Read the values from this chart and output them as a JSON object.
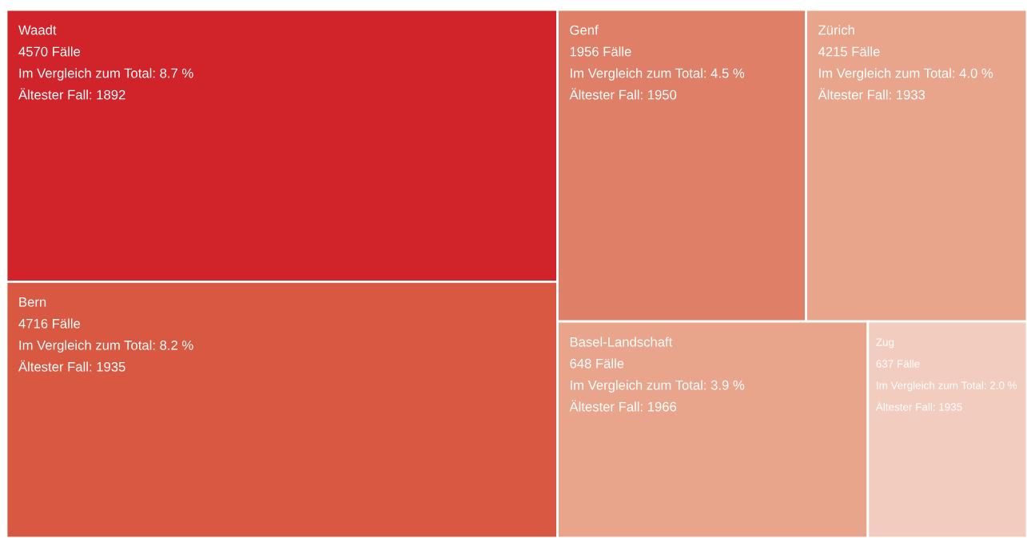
{
  "chart_data": {
    "type": "other",
    "categories": [
      "Waadt",
      "Bern",
      "Genf",
      "Zürich",
      "Basel-Landschaft",
      "Zug"
    ],
    "values": [
      8.7,
      8.2,
      4.5,
      4.0,
      3.9,
      2.0
    ],
    "value_labels": [
      "Im Vergleich zum Total: 8.7 %",
      "Im Vergleich zum Total: 8.2 %",
      "Im Vergleich zum Total: 4.5 %",
      "Im Vergleich zum Total: 4.0 %",
      "Im Vergleich zum Total: 3.9 %",
      "Im Vergleich zum Total: 2.0 %"
    ],
    "annotations": [
      "4570 Fälle",
      "Ältester Fall: 1892",
      "4716 Fälle",
      "Ältester Fall: 1935",
      "1956 Fälle",
      "Ältester Fall: 1950",
      "4215 Fälle",
      "Ältester Fall: 1933",
      "648 Fälle",
      "Ältester Fall: 1966",
      "637 Fälle",
      "Ältester Fall: 1935"
    ],
    "colors": [
      "#d0232a",
      "#d85841",
      "#e07f67",
      "#e8a58c",
      "#e8a58c",
      "#f2cdbf"
    ]
  }
}
